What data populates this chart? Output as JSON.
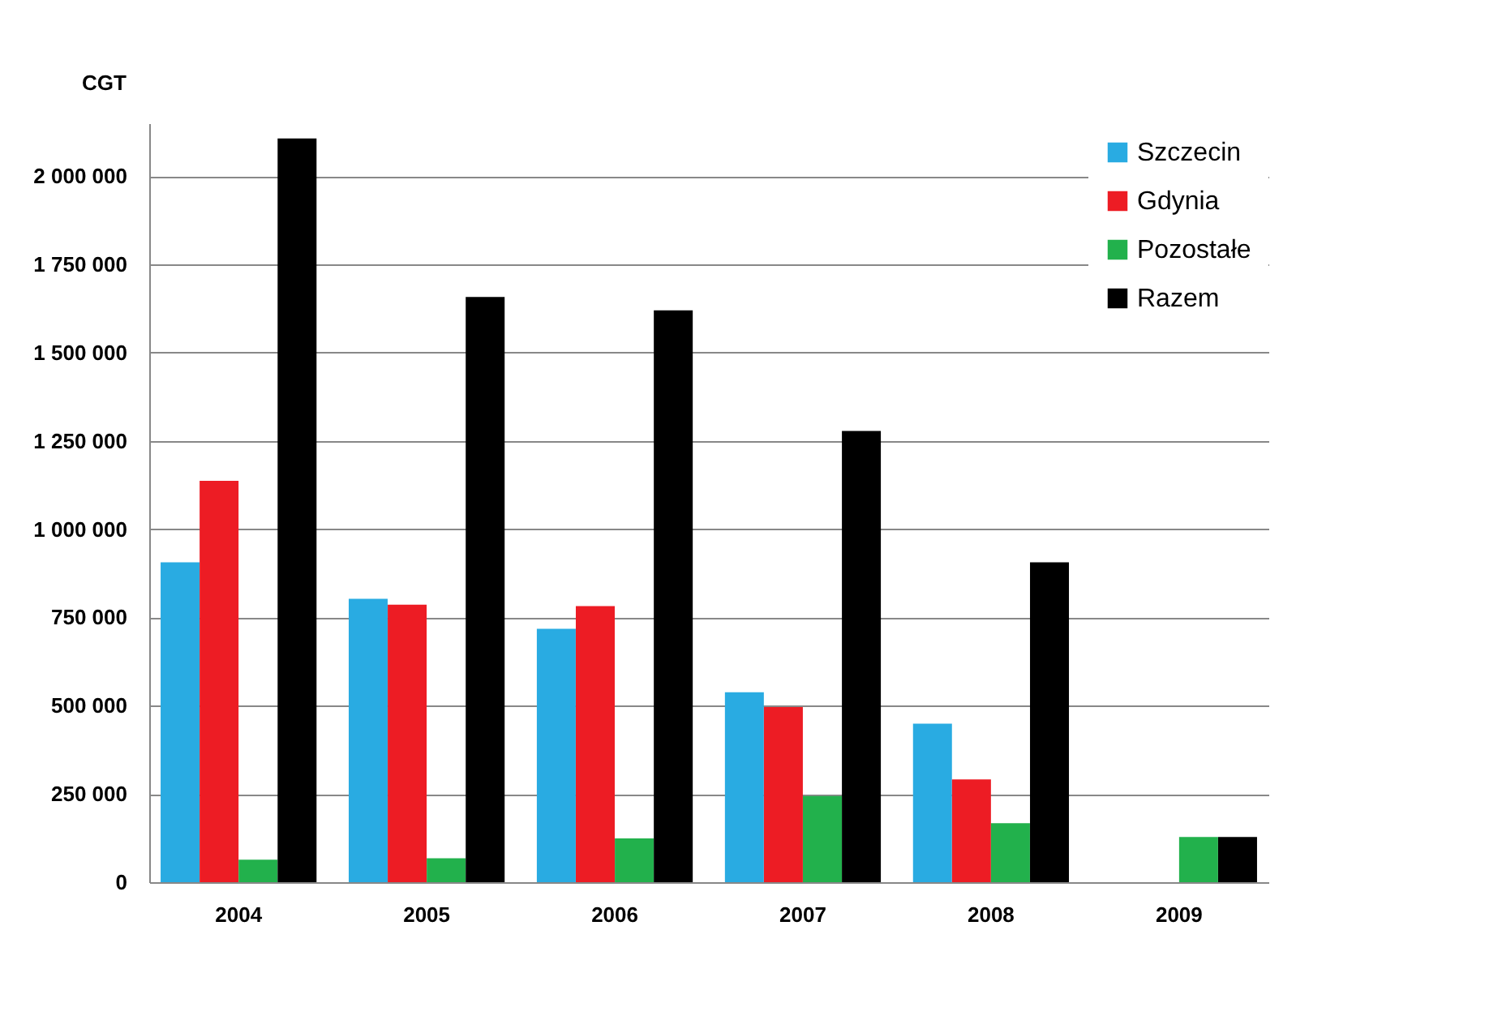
{
  "chart_data": {
    "type": "bar",
    "ylabel": "CGT",
    "categories": [
      "2004",
      "2005",
      "2006",
      "2007",
      "2008",
      "2009"
    ],
    "series": [
      {
        "name": "Szczecin",
        "color": "#29abe2",
        "values": [
          906000,
          803000,
          718000,
          538000,
          449000,
          null
        ]
      },
      {
        "name": "Gdynia",
        "color": "#ed1c24",
        "values": [
          1137000,
          786000,
          782000,
          496000,
          291000,
          null
        ]
      },
      {
        "name": "Pozostałe",
        "color": "#22b14c",
        "values": [
          64000,
          68000,
          124000,
          244000,
          167000,
          128000
        ]
      },
      {
        "name": "Razem",
        "color": "#000000",
        "values": [
          2107000,
          1658000,
          1620000,
          1278000,
          906000,
          128000
        ]
      }
    ],
    "ylim": [
      0,
      2150000
    ],
    "yticks": [
      {
        "value": 0,
        "label": "0"
      },
      {
        "value": 250000,
        "label": "250 000"
      },
      {
        "value": 500000,
        "label": "500 000"
      },
      {
        "value": 750000,
        "label": "750 000"
      },
      {
        "value": 1000000,
        "label": "1 000 000"
      },
      {
        "value": 1250000,
        "label": "1 250 000"
      },
      {
        "value": 1500000,
        "label": "1 500 000"
      },
      {
        "value": 1750000,
        "label": "1 750 000"
      },
      {
        "value": 2000000,
        "label": "2 000 000"
      }
    ],
    "grid": "y",
    "legend": "top right"
  }
}
